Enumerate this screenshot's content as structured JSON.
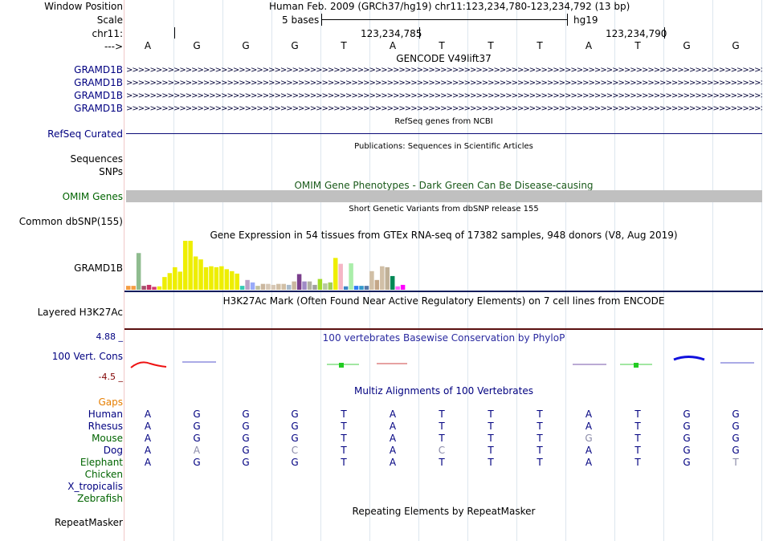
{
  "header": {
    "window_position_label": "Window Position",
    "scale_label": "Scale",
    "chrom_label": "chr11:",
    "strand_label": "--->",
    "assembly_text": "Human Feb. 2009 (GRCh37/hg19)   chr11:123,234,780-123,234,792 (13 bp)",
    "scale_text": "5 bases",
    "scale_db": "hg19",
    "coord1": "123,234,785",
    "coord2": "123,234,790"
  },
  "bases": [
    "A",
    "G",
    "G",
    "G",
    "T",
    "A",
    "T",
    "T",
    "T",
    "A",
    "T",
    "G",
    "G"
  ],
  "gencode": {
    "title": "GENCODE V49lift37",
    "tracks": [
      "GRAMD1B",
      "GRAMD1B",
      "GRAMD1B",
      "GRAMD1B"
    ]
  },
  "refseq": {
    "label": "RefSeq Curated",
    "title": "RefSeq genes from NCBI"
  },
  "publications": {
    "title": "Publications: Sequences in Scientific Articles",
    "label": "Sequences"
  },
  "snps": {
    "label": "SNPs"
  },
  "omim": {
    "title": "OMIM Gene Phenotypes - Dark Green Can Be Disease-causing",
    "label": "OMIM Genes",
    "bar_color": "#c0c0c0"
  },
  "dbsnp": {
    "title": "Short Genetic Variants from dbSNP release 155",
    "label": "Common dbSNP(155)"
  },
  "gtex": {
    "title": "Gene Expression in 54 tissues from GTEx RNA-seq of 17382 samples, 948 donors (V8, Aug 2019)",
    "label": "GRAMD1B",
    "bars": [
      {
        "v": 0.08,
        "c": "#f59d43"
      },
      {
        "v": 0.08,
        "c": "#f59d43"
      },
      {
        "v": 0.75,
        "c": "#8fbc8f"
      },
      {
        "v": 0.08,
        "c": "#a6506d"
      },
      {
        "v": 0.1,
        "c": "#c53366"
      },
      {
        "v": 0.06,
        "c": "#d33a72"
      },
      {
        "v": 0.07,
        "c": "#eeee00"
      },
      {
        "v": 0.26,
        "c": "#eeee00"
      },
      {
        "v": 0.34,
        "c": "#eeee00"
      },
      {
        "v": 0.46,
        "c": "#eeee00"
      },
      {
        "v": 0.37,
        "c": "#eeee00"
      },
      {
        "v": 1.0,
        "c": "#eeee00"
      },
      {
        "v": 1.0,
        "c": "#eeee00"
      },
      {
        "v": 0.68,
        "c": "#eeee00"
      },
      {
        "v": 0.62,
        "c": "#eeee00"
      },
      {
        "v": 0.46,
        "c": "#eeee00"
      },
      {
        "v": 0.48,
        "c": "#eeee00"
      },
      {
        "v": 0.46,
        "c": "#eeee00"
      },
      {
        "v": 0.48,
        "c": "#eeee00"
      },
      {
        "v": 0.42,
        "c": "#eeee00"
      },
      {
        "v": 0.38,
        "c": "#eeee00"
      },
      {
        "v": 0.33,
        "c": "#eeee00"
      },
      {
        "v": 0.08,
        "c": "#33ccb3"
      },
      {
        "v": 0.2,
        "c": "#b9a1c6"
      },
      {
        "v": 0.15,
        "c": "#99aaf9"
      },
      {
        "v": 0.08,
        "c": "#c0c0a0"
      },
      {
        "v": 0.12,
        "c": "#cbb79f"
      },
      {
        "v": 0.12,
        "c": "#d6c7b5"
      },
      {
        "v": 0.1,
        "c": "#d6c7b5"
      },
      {
        "v": 0.12,
        "c": "#d1bfa6"
      },
      {
        "v": 0.12,
        "c": "#d1bfa6"
      },
      {
        "v": 0.1,
        "c": "#aabbcc"
      },
      {
        "v": 0.17,
        "c": "#cbb79f"
      },
      {
        "v": 0.32,
        "c": "#7a3e8c"
      },
      {
        "v": 0.17,
        "c": "#a08ac6"
      },
      {
        "v": 0.17,
        "c": "#b1b1a2"
      },
      {
        "v": 0.1,
        "c": "#a0a0a0"
      },
      {
        "v": 0.22,
        "c": "#a2dd25"
      },
      {
        "v": 0.13,
        "c": "#b7c9a0"
      },
      {
        "v": 0.15,
        "c": "#a2cd5a"
      },
      {
        "v": 0.65,
        "c": "#eeee00"
      },
      {
        "v": 0.53,
        "c": "#f5b6c5"
      },
      {
        "v": 0.07,
        "c": "#3c84c5"
      },
      {
        "v": 0.54,
        "c": "#aaeeaa"
      },
      {
        "v": 0.08,
        "c": "#2e7cf3"
      },
      {
        "v": 0.08,
        "c": "#3399cc"
      },
      {
        "v": 0.08,
        "c": "#5577aa"
      },
      {
        "v": 0.38,
        "c": "#d1bfa6"
      },
      {
        "v": 0.2,
        "c": "#c4a788"
      },
      {
        "v": 0.48,
        "c": "#d1bfa6"
      },
      {
        "v": 0.46,
        "c": "#c0b097"
      },
      {
        "v": 0.28,
        "c": "#008855"
      },
      {
        "v": 0.07,
        "c": "#ff66ff"
      },
      {
        "v": 0.1,
        "c": "#ff00ff"
      }
    ]
  },
  "h3k27ac": {
    "title": "H3K27Ac Mark (Often Found Near Active Regulatory Elements) on 7 cell lines from ENCODE",
    "label": "Layered H3K27Ac"
  },
  "cons": {
    "title": "100 vertebrates Basewise Conservation by PhyloP",
    "label": "100 Vert. Cons",
    "max": "4.88 _",
    "min": "-4.5 _"
  },
  "multiz": {
    "title": "Multiz Alignments of 100 Vertebrates",
    "gaps_label": "Gaps",
    "species": [
      {
        "name": "Human",
        "color": "#000080",
        "bases": [
          "A",
          "G",
          "G",
          "G",
          "T",
          "A",
          "T",
          "T",
          "T",
          "A",
          "T",
          "G",
          "G"
        ],
        "faint": []
      },
      {
        "name": "Rhesus",
        "color": "#000080",
        "bases": [
          "A",
          "G",
          "G",
          "G",
          "T",
          "A",
          "T",
          "T",
          "T",
          "A",
          "T",
          "G",
          "G"
        ],
        "faint": []
      },
      {
        "name": "Mouse",
        "color": "#006400",
        "bases": [
          "A",
          "G",
          "G",
          "G",
          "T",
          "A",
          "T",
          "T",
          "T",
          "G",
          "T",
          "G",
          "G"
        ],
        "faint": [
          9
        ]
      },
      {
        "name": "Dog",
        "color": "#000080",
        "bases": [
          "A",
          "A",
          "G",
          "C",
          "T",
          "A",
          "C",
          "T",
          "T",
          "A",
          "T",
          "G",
          "G"
        ],
        "faint": [
          1,
          3,
          6
        ]
      },
      {
        "name": "Elephant",
        "color": "#006400",
        "bases": [
          "A",
          "G",
          "G",
          "G",
          "T",
          "A",
          "T",
          "T",
          "T",
          "A",
          "T",
          "G",
          "T"
        ],
        "faint": [
          12
        ]
      },
      {
        "name": "Chicken",
        "color": "#006400",
        "bases": [],
        "faint": []
      },
      {
        "name": "X_tropicalis",
        "color": "#000080",
        "bases": [],
        "faint": []
      },
      {
        "name": "Zebrafish",
        "color": "#006400",
        "bases": [],
        "faint": []
      }
    ]
  },
  "repeatmasker": {
    "title": "Repeating Elements by RepeatMasker",
    "label": "RepeatMasker"
  },
  "colors": {
    "label_blue": "#000080",
    "label_green": "#006400",
    "orange": "#e67e00",
    "dark_red": "#800000",
    "cons_blue": "#2a2aa0"
  }
}
